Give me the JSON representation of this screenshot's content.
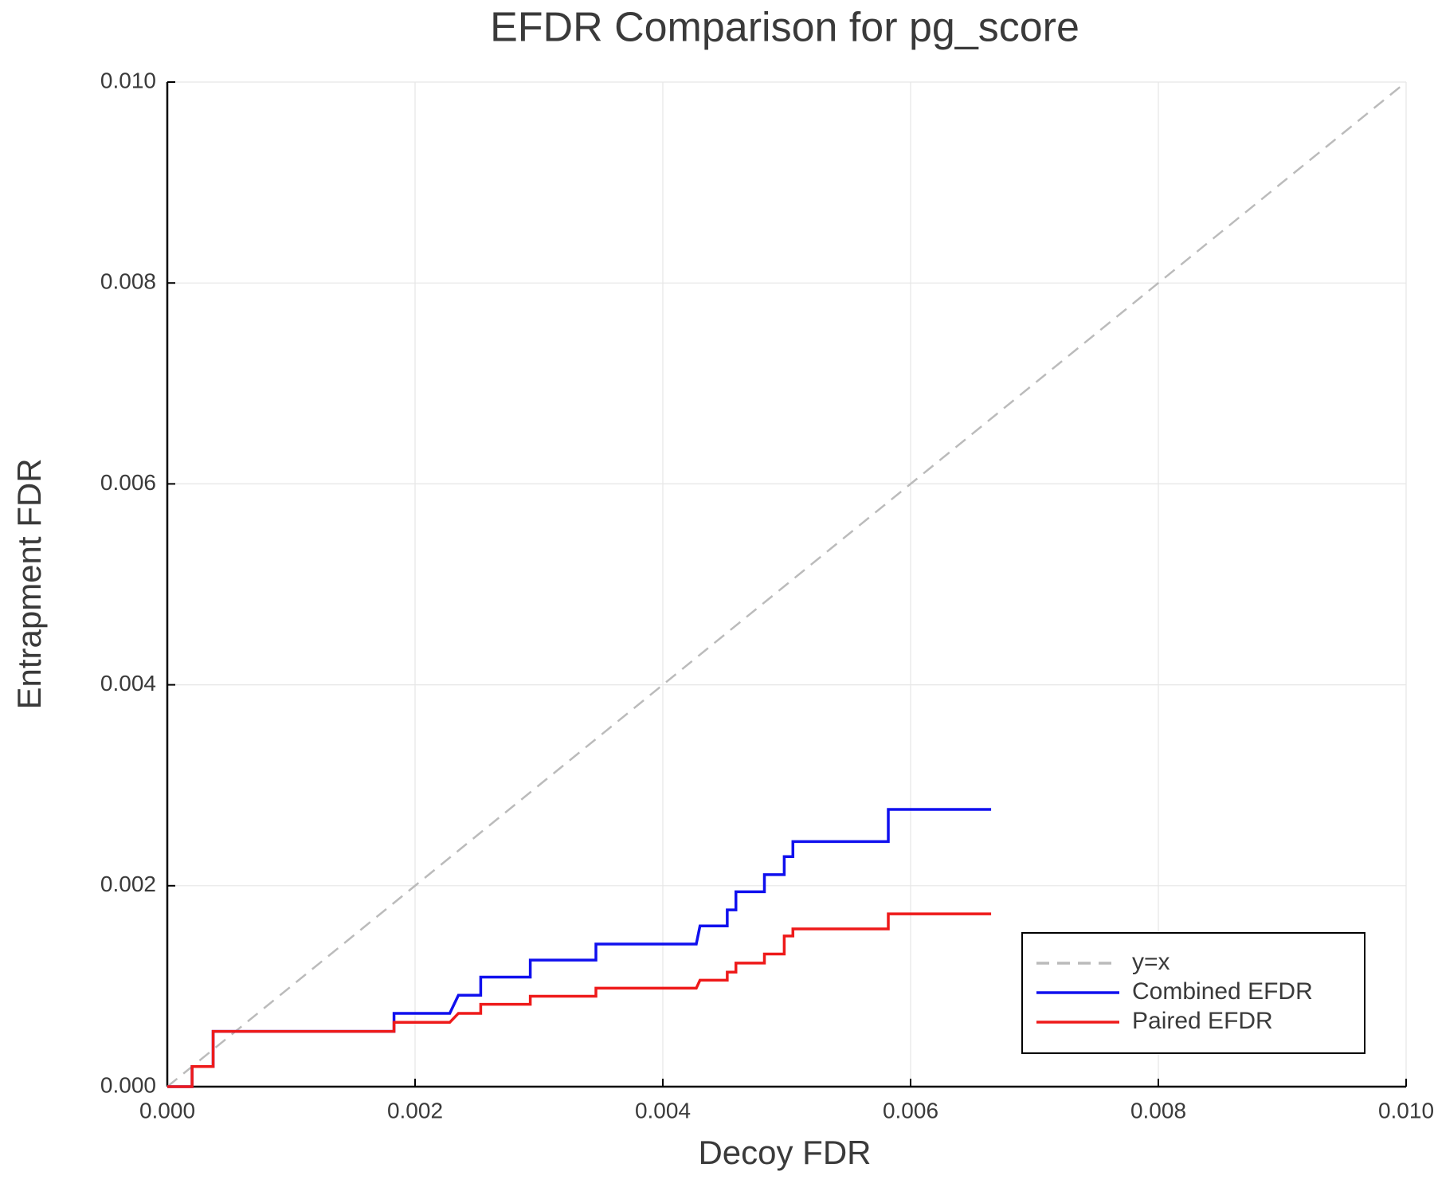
{
  "chart_data": {
    "type": "line",
    "title": "EFDR Comparison for pg_score",
    "xlabel": "Decoy FDR",
    "ylabel": "Entrapment FDR",
    "xlim": [
      0,
      0.01
    ],
    "ylim": [
      0,
      0.01
    ],
    "xticks": [
      {
        "value": 0,
        "label": "0.000"
      },
      {
        "value": 0.002,
        "label": "0.002"
      },
      {
        "value": 0.004,
        "label": "0.004"
      },
      {
        "value": 0.006,
        "label": "0.006"
      },
      {
        "value": 0.008,
        "label": "0.008"
      },
      {
        "value": 0.01,
        "label": "0.010"
      }
    ],
    "yticks": [
      {
        "value": 0,
        "label": "0.000"
      },
      {
        "value": 0.002,
        "label": "0.002"
      },
      {
        "value": 0.004,
        "label": "0.004"
      },
      {
        "value": 0.006,
        "label": "0.006"
      },
      {
        "value": 0.008,
        "label": "0.008"
      },
      {
        "value": 0.01,
        "label": "0.010"
      }
    ],
    "grid": true,
    "legend": "lower right",
    "series": [
      {
        "name": "y=x",
        "color": "#bbbbbb",
        "dashed": true,
        "x": [
          0,
          0.01
        ],
        "values": [
          0,
          0.01
        ]
      },
      {
        "name": "Combined EFDR",
        "color": "#1010ee",
        "dashed": false,
        "x": [
          0,
          0.0002,
          0.0002,
          0.00037,
          0.00037,
          0.00183,
          0.00183,
          0.00228,
          0.00235,
          0.00253,
          0.00253,
          0.00293,
          0.00293,
          0.00346,
          0.00346,
          0.00427,
          0.0043,
          0.00452,
          0.00452,
          0.00459,
          0.00459,
          0.00482,
          0.00482,
          0.00498,
          0.00498,
          0.00505,
          0.00505,
          0.00582,
          0.00582,
          0.00665
        ],
        "values": [
          0,
          0,
          0.0002,
          0.0002,
          0.00055,
          0.00055,
          0.00073,
          0.00073,
          0.00091,
          0.00091,
          0.00109,
          0.00109,
          0.00126,
          0.00126,
          0.00142,
          0.00142,
          0.0016,
          0.0016,
          0.00176,
          0.00176,
          0.00194,
          0.00194,
          0.00211,
          0.00211,
          0.00229,
          0.00229,
          0.00244,
          0.00244,
          0.00276,
          0.00276
        ]
      },
      {
        "name": "Paired EFDR",
        "color": "#ee1a1a",
        "dashed": false,
        "x": [
          0,
          0.0002,
          0.0002,
          0.00037,
          0.00037,
          0.00183,
          0.00183,
          0.00228,
          0.00235,
          0.00253,
          0.00253,
          0.00293,
          0.00293,
          0.00346,
          0.00346,
          0.00427,
          0.0043,
          0.00452,
          0.00452,
          0.00459,
          0.00459,
          0.00482,
          0.00482,
          0.00498,
          0.00498,
          0.00505,
          0.00505,
          0.00582,
          0.00582,
          0.00665
        ],
        "values": [
          0,
          0,
          0.0002,
          0.0002,
          0.00055,
          0.00055,
          0.00064,
          0.00064,
          0.00073,
          0.00073,
          0.00082,
          0.00082,
          0.0009,
          0.0009,
          0.00098,
          0.00098,
          0.00106,
          0.00106,
          0.00114,
          0.00114,
          0.00123,
          0.00123,
          0.00132,
          0.00132,
          0.0015,
          0.0015,
          0.00157,
          0.00157,
          0.00172,
          0.00172
        ]
      }
    ]
  }
}
